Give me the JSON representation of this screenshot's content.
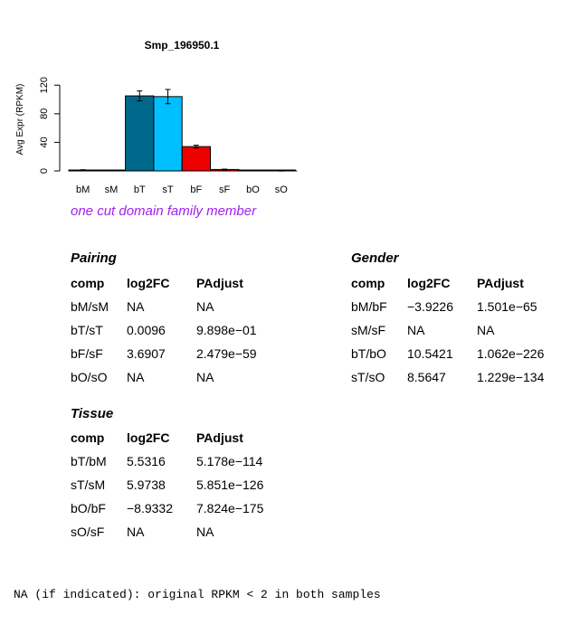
{
  "chart_data": {
    "type": "bar",
    "title": "Smp_196950.1",
    "ylabel": "Avg Expr (RPKM)",
    "xlabel": "",
    "ylim": [
      0,
      140
    ],
    "yticks": [
      0,
      40,
      80,
      120
    ],
    "categories": [
      "bM",
      "sM",
      "bT",
      "sT",
      "bF",
      "sF",
      "bO",
      "sO"
    ],
    "values": [
      1.2,
      0.8,
      105,
      104,
      34,
      2,
      0.2,
      0.3
    ],
    "errors": [
      0.5,
      0.3,
      7,
      10,
      2,
      0.5,
      0,
      0.5
    ],
    "colors": [
      "#000080",
      "#000080",
      "#00688b",
      "#00bfff",
      "#ee0000",
      "#ee0000",
      "#8b0000",
      "#8b0000"
    ],
    "grid": false,
    "legend": "none"
  },
  "subtitle": "one cut domain family member",
  "pairing": {
    "title": "Pairing",
    "headers": [
      "comp",
      "log2FC",
      "PAdjust"
    ],
    "rows": [
      [
        "bM/sM",
        "NA",
        "NA"
      ],
      [
        "bT/sT",
        "0.0096",
        "9.898e−01"
      ],
      [
        "bF/sF",
        "3.6907",
        "2.479e−59"
      ],
      [
        "bO/sO",
        "NA",
        "NA"
      ]
    ]
  },
  "gender": {
    "title": "Gender",
    "headers": [
      "comp",
      "log2FC",
      "PAdjust"
    ],
    "rows": [
      [
        "bM/bF",
        "−3.9226",
        "1.501e−65"
      ],
      [
        "sM/sF",
        "NA",
        "NA"
      ],
      [
        "bT/bO",
        "10.5421",
        "1.062e−226"
      ],
      [
        "sT/sO",
        "8.5647",
        "1.229e−134"
      ]
    ]
  },
  "tissue": {
    "title": "Tissue",
    "headers": [
      "comp",
      "log2FC",
      "PAdjust"
    ],
    "rows": [
      [
        "bT/bM",
        "5.5316",
        "5.178e−114"
      ],
      [
        "sT/sM",
        "5.9738",
        "5.851e−126"
      ],
      [
        "bO/bF",
        "−8.9332",
        "7.824e−175"
      ],
      [
        "sO/sF",
        "NA",
        "NA"
      ]
    ]
  },
  "footnote": "NA (if indicated): original RPKM < 2 in both samples"
}
